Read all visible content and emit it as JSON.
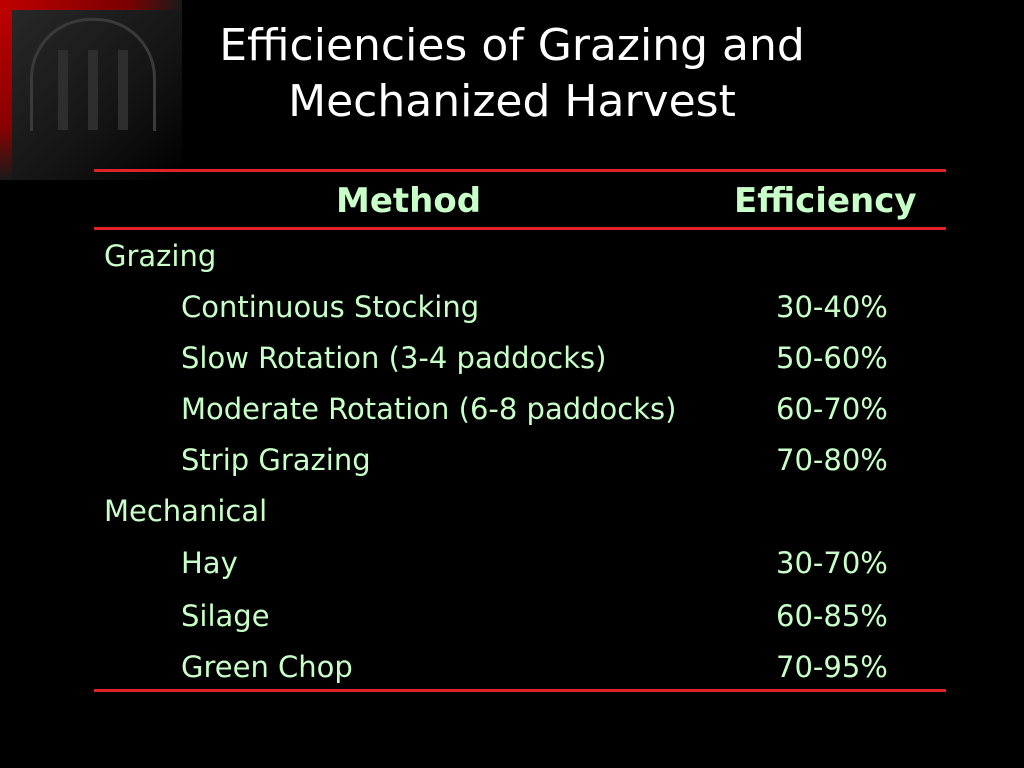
{
  "title": {
    "line1": "Efficiencies of Grazing and",
    "line2": "Mechanized Harvest"
  },
  "table": {
    "headers": {
      "method": "Method",
      "efficiency": "Efficiency"
    },
    "groups": [
      {
        "category": "Grazing",
        "rows": [
          {
            "method": "Continuous Stocking",
            "efficiency": "30-40%"
          },
          {
            "method": "Slow Rotation (3-4 paddocks)",
            "efficiency": "50-60%"
          },
          {
            "method": "Moderate Rotation (6-8 paddocks)",
            "efficiency": "60-70%"
          },
          {
            "method": "Strip Grazing",
            "efficiency": "70-80%"
          }
        ]
      },
      {
        "category": "Mechanical",
        "rows": [
          {
            "method": "Hay",
            "efficiency": "30-70%"
          },
          {
            "method": "Silage",
            "efficiency": "60-85%"
          },
          {
            "method": "Green Chop",
            "efficiency": "70-95%"
          }
        ]
      }
    ]
  },
  "colors": {
    "background": "#000000",
    "title_text": "#ffffff",
    "table_text": "#c8ffc8",
    "rule": "#e0222b"
  },
  "icons": {
    "corner": "university-arch-logo"
  }
}
